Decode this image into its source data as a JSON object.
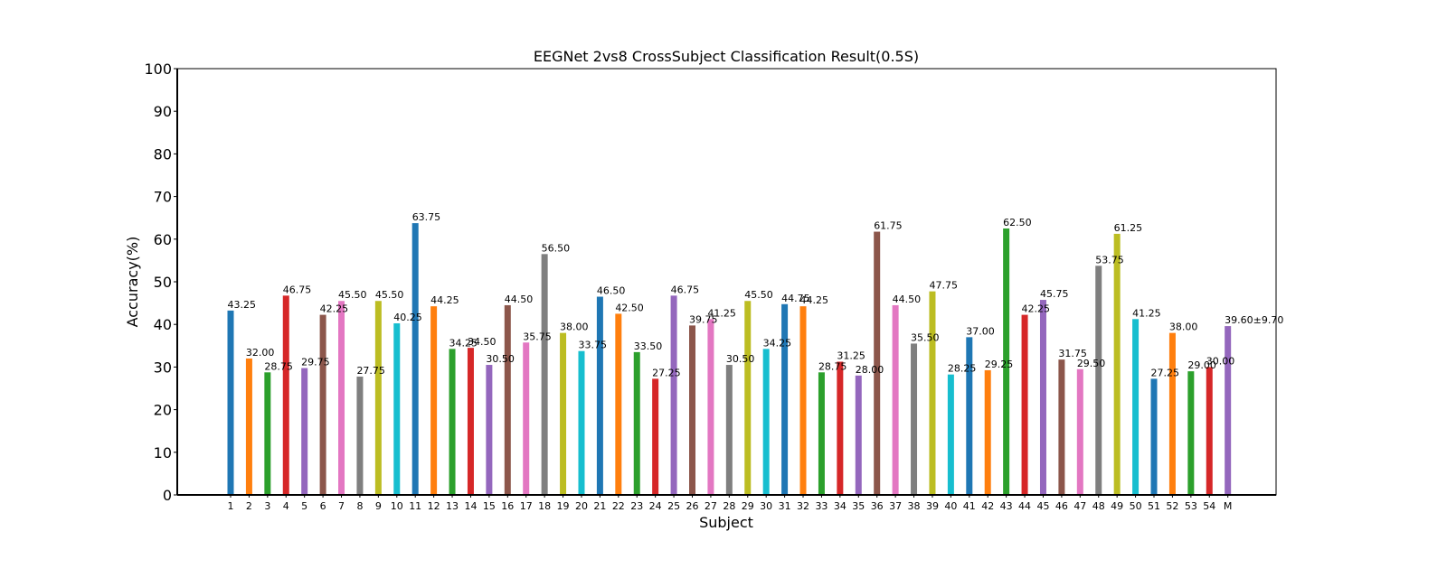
{
  "chart_data": {
    "type": "bar",
    "title": "EEGNet 2vs8 CrossSubject Classification Result(0.5S)",
    "xlabel": "Subject",
    "ylabel": "Accuracy(%)",
    "ylim": [
      0,
      100
    ],
    "yticks": [
      "0",
      "10",
      "20",
      "30",
      "40",
      "50",
      "60",
      "70",
      "80",
      "90",
      "100"
    ],
    "grid": false,
    "categories": [
      "1",
      "2",
      "3",
      "4",
      "5",
      "6",
      "7",
      "8",
      "9",
      "10",
      "11",
      "12",
      "13",
      "14",
      "15",
      "16",
      "17",
      "18",
      "19",
      "20",
      "21",
      "22",
      "23",
      "24",
      "25",
      "26",
      "27",
      "28",
      "29",
      "30",
      "31",
      "32",
      "33",
      "34",
      "35",
      "36",
      "37",
      "38",
      "39",
      "40",
      "41",
      "42",
      "43",
      "44",
      "45",
      "46",
      "47",
      "48",
      "49",
      "50",
      "51",
      "52",
      "53",
      "54",
      "M"
    ],
    "values": [
      43.25,
      32.0,
      28.75,
      46.75,
      29.75,
      42.25,
      45.5,
      27.75,
      45.5,
      40.25,
      63.75,
      44.25,
      34.25,
      34.5,
      30.5,
      44.5,
      35.75,
      56.5,
      38.0,
      33.75,
      46.5,
      42.5,
      33.5,
      27.25,
      46.75,
      39.75,
      41.25,
      30.5,
      45.5,
      34.25,
      44.75,
      44.25,
      28.75,
      31.25,
      28.0,
      61.75,
      44.5,
      35.5,
      47.75,
      28.25,
      37.0,
      29.25,
      62.5,
      42.25,
      45.75,
      31.75,
      29.5,
      53.75,
      61.25,
      41.25,
      27.25,
      38.0,
      29.0,
      30.0,
      39.6
    ],
    "value_labels": [
      "43.25",
      "32.00",
      "28.75",
      "46.75",
      "29.75",
      "42.25",
      "45.50",
      "27.75",
      "45.50",
      "40.25",
      "63.75",
      "44.25",
      "34.25",
      "34.50",
      "30.50",
      "44.50",
      "35.75",
      "56.50",
      "38.00",
      "33.75",
      "46.50",
      "42.50",
      "33.50",
      "27.25",
      "46.75",
      "39.75",
      "41.25",
      "30.50",
      "45.50",
      "34.25",
      "44.75",
      "44.25",
      "28.75",
      "31.25",
      "28.00",
      "61.75",
      "44.50",
      "35.50",
      "47.75",
      "28.25",
      "37.00",
      "29.25",
      "62.50",
      "42.25",
      "45.75",
      "31.75",
      "29.50",
      "53.75",
      "61.25",
      "41.25",
      "27.25",
      "38.00",
      "29.00",
      "30.00",
      "39.60±9.70"
    ],
    "palette": [
      "#1f77b4",
      "#ff7f0e",
      "#2ca02c",
      "#d62728",
      "#9467bd",
      "#8c564b",
      "#e377c2",
      "#7f7f7f",
      "#bcbd22",
      "#17becf"
    ],
    "mean_label_color": "#ff0000"
  }
}
